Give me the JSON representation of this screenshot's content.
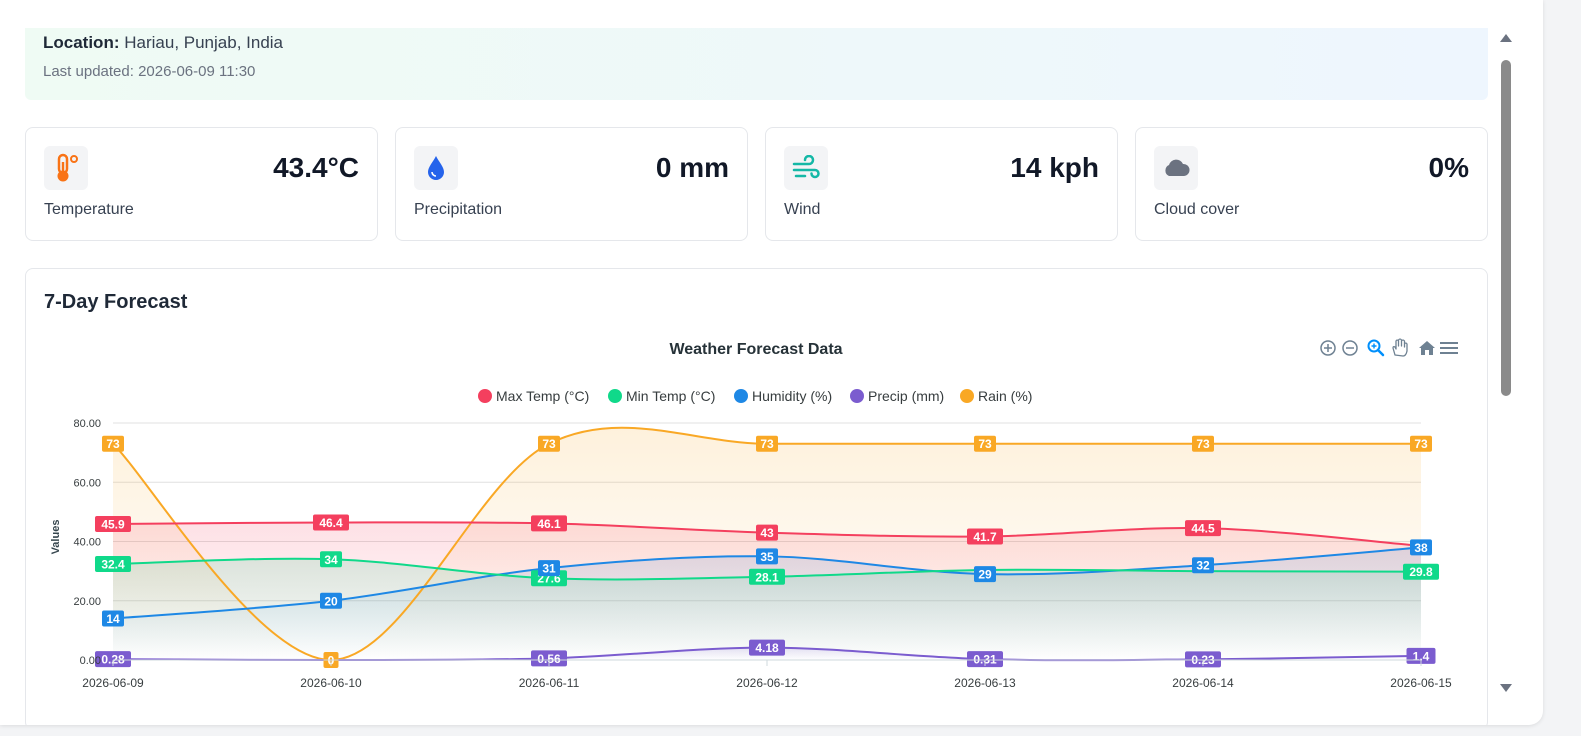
{
  "location": {
    "label": "Location:",
    "value": "Hariau, Punjab, India",
    "updated": "Last updated: 2026-06-09 11:30"
  },
  "cards": [
    {
      "label": "Temperature",
      "value": "43.4°C",
      "icon": "thermometer-icon",
      "color": "#f97316"
    },
    {
      "label": "Precipitation",
      "value": "0 mm",
      "icon": "droplet-icon",
      "color": "#3b82f6"
    },
    {
      "label": "Wind",
      "value": "14 kph",
      "icon": "wind-icon",
      "color": "#14b8a6"
    },
    {
      "label": "Cloud cover",
      "value": "0%",
      "icon": "cloud-icon",
      "color": "#6b7280"
    }
  ],
  "forecast": {
    "title": "7-Day Forecast"
  },
  "chart_data": {
    "type": "line",
    "title": "Weather Forecast Data",
    "ylabel": "Values",
    "xlabel": "",
    "ylim": [
      0,
      80
    ],
    "yticks": [
      "0.00",
      "20.00",
      "40.00",
      "60.00",
      "80.00"
    ],
    "grid": true,
    "legend": "top-center",
    "categories": [
      "2026-06-09",
      "2026-06-10",
      "2026-06-11",
      "2026-06-12",
      "2026-06-13",
      "2026-06-14",
      "2026-06-15"
    ],
    "series": [
      {
        "name": "Max Temp (°C)",
        "color": "#f43f5e",
        "values": [
          45.9,
          46.4,
          46.1,
          43,
          41.7,
          44.5,
          38.5
        ],
        "labels": [
          "45.9",
          "46.4",
          "46.1",
          "43",
          "41.7",
          "44.5",
          ""
        ]
      },
      {
        "name": "Min Temp (°C)",
        "color": "#10d98a",
        "values": [
          32.4,
          34,
          27.6,
          28.1,
          30.4,
          30,
          29.8
        ],
        "labels": [
          "32.4",
          "34",
          "27.6",
          "28.1",
          "",
          "",
          "29.8"
        ]
      },
      {
        "name": "Humidity (%)",
        "color": "#1e88e5",
        "values": [
          14,
          20,
          31,
          35,
          29,
          32,
          38
        ],
        "labels": [
          "14",
          "20",
          "31",
          "35",
          "29",
          "32",
          "38"
        ]
      },
      {
        "name": "Precip (mm)",
        "color": "#7b5ccf",
        "values": [
          0.28,
          0,
          0.56,
          4.18,
          0.31,
          0.23,
          1.4
        ],
        "labels": [
          "0.28",
          "",
          "0.56",
          "4.18",
          "0.31",
          "0.23",
          "1.4"
        ]
      },
      {
        "name": "Rain (%)",
        "color": "#f9a825",
        "values": [
          73,
          0,
          73,
          73,
          73,
          73,
          73
        ],
        "labels": [
          "73",
          "0",
          "73",
          "73",
          "73",
          "73",
          "73"
        ]
      }
    ]
  }
}
